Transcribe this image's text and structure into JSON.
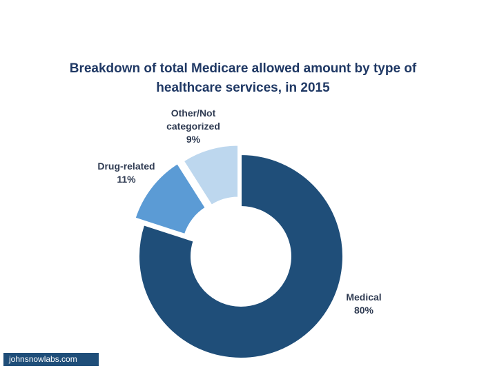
{
  "chart_data": {
    "type": "donut",
    "title": "Breakdown of total Medicare allowed amount by type of healthcare services, in 2015",
    "categories": [
      "Medical",
      "Drug-related",
      "Other/Not categorized"
    ],
    "values": [
      80,
      11,
      9
    ],
    "value_labels": [
      "80%",
      "11%",
      "9%"
    ],
    "colors": [
      "#1f4e79",
      "#5b9bd5",
      "#bdd7ee"
    ],
    "watermark": "johnsnowlabs.com"
  }
}
